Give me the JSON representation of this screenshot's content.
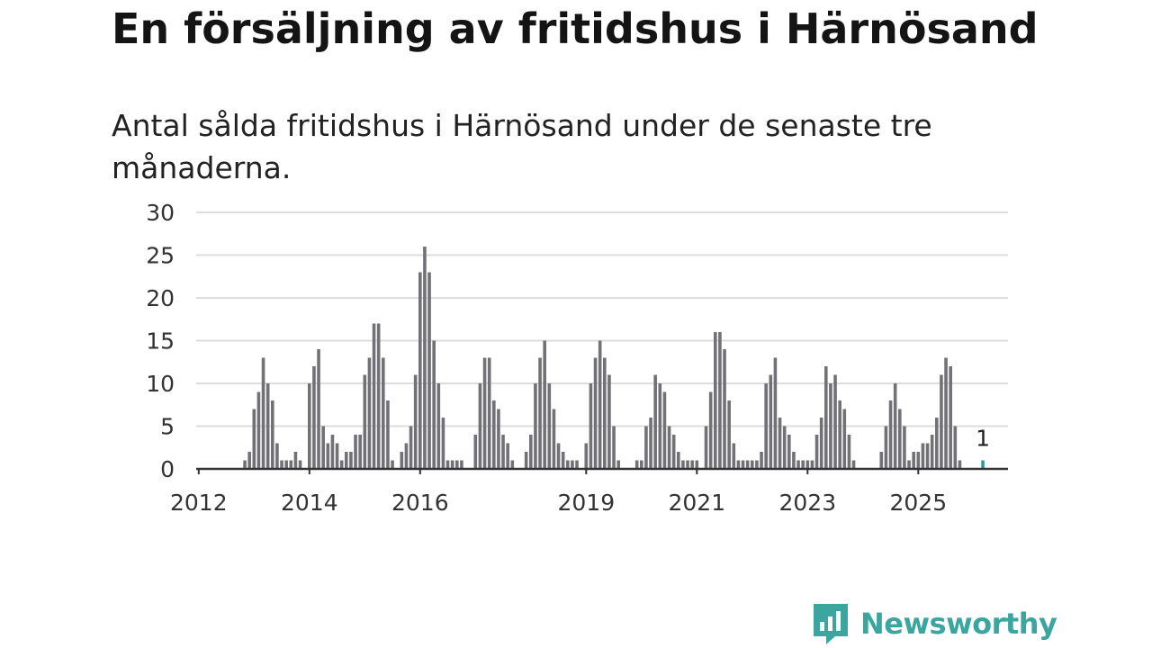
{
  "headline": "En försäljning av fritidshus i Härnösand",
  "subtitle": "Antal sålda fritidshus i Härnösand under de senaste tre månaderna.",
  "brand": {
    "name": "Newsworthy",
    "icon": "newsworthy-logo-icon",
    "color": "#3aa69f"
  },
  "chart_data": {
    "type": "bar",
    "title": "",
    "xlabel": "",
    "ylabel": "",
    "ylim": [
      0,
      30
    ],
    "y_ticks": [
      0,
      5,
      10,
      15,
      20,
      25,
      30
    ],
    "x_ticks": [
      "2012",
      "2014",
      "2016",
      "2019",
      "2021",
      "2023",
      "2025"
    ],
    "grid": true,
    "bar_color": "#727176",
    "highlight_color": "#1aa39a",
    "series": [
      {
        "values": [
          0,
          0,
          0,
          0,
          0,
          0,
          0,
          0,
          0,
          0,
          1,
          2,
          7,
          9,
          13,
          10,
          8,
          3,
          1,
          1,
          1,
          2,
          1,
          0,
          10,
          12,
          14,
          5,
          3,
          4,
          3,
          1,
          2,
          2,
          4,
          4,
          11,
          13,
          17,
          17,
          13,
          8,
          1,
          0,
          2,
          3,
          5,
          11,
          23,
          26,
          23,
          15,
          10,
          6,
          1,
          1,
          1,
          1,
          0,
          0,
          4,
          10,
          13,
          13,
          8,
          7,
          4,
          3,
          1,
          0,
          0,
          2,
          4,
          10,
          13,
          15,
          10,
          7,
          3,
          2,
          1,
          1,
          1,
          0,
          3,
          10,
          13,
          15,
          13,
          11,
          5,
          1,
          0,
          0,
          0,
          1,
          1,
          5,
          6,
          11,
          10,
          9,
          5,
          4,
          2,
          1,
          1,
          1,
          1,
          0,
          5,
          9,
          16,
          16,
          14,
          8,
          3,
          1,
          1,
          1,
          1,
          1,
          2,
          10,
          11,
          13,
          6,
          5,
          4,
          2,
          1,
          1,
          1,
          1,
          4,
          6,
          12,
          10,
          11,
          8,
          7,
          4,
          1,
          0,
          0,
          0,
          0,
          0,
          2,
          5,
          8,
          10,
          7,
          5,
          1,
          2,
          2,
          3,
          3,
          4,
          6,
          11,
          13,
          12,
          5,
          1,
          0,
          0,
          0,
          0,
          1
        ],
        "highlight_last": true
      }
    ],
    "annotations": [
      {
        "label": "1",
        "value": 1,
        "series_index": 170
      }
    ]
  }
}
